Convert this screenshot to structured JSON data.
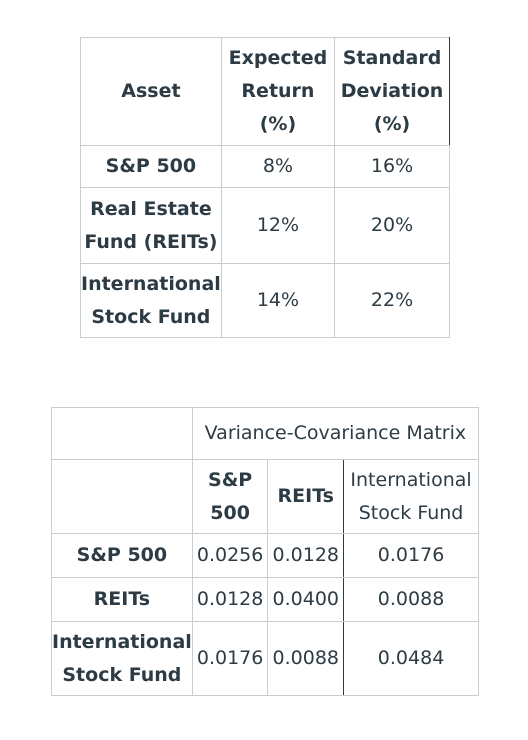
{
  "table1": {
    "headers": {
      "asset": "Asset",
      "expected_return": [
        "Expected",
        "Return (%)"
      ],
      "std_dev": [
        "Standard",
        "Deviation",
        "(%)"
      ]
    },
    "rows": [
      {
        "asset": [
          "S&P 500"
        ],
        "expected_return": "8%",
        "std_dev": "16%"
      },
      {
        "asset": [
          "Real Estate",
          "Fund (REITs)"
        ],
        "expected_return": "12%",
        "std_dev": "20%"
      },
      {
        "asset": [
          "International",
          "Stock Fund"
        ],
        "expected_return": "14%",
        "std_dev": "22%"
      }
    ]
  },
  "table2": {
    "title": "Variance-Covariance Matrix",
    "columns": [
      [
        "S&P",
        "500"
      ],
      [
        "REITs"
      ],
      [
        "International",
        "Stock Fund"
      ]
    ],
    "rows": [
      {
        "label": [
          "S&P 500"
        ],
        "values": [
          "0.0256",
          "0.0128",
          "0.0176"
        ]
      },
      {
        "label": [
          "REITs"
        ],
        "values": [
          "0.0128",
          "0.0400",
          "0.0088"
        ]
      },
      {
        "label": [
          "International",
          "Stock Fund"
        ],
        "values": [
          "0.0176",
          "0.0088",
          "0.0484"
        ]
      }
    ]
  }
}
